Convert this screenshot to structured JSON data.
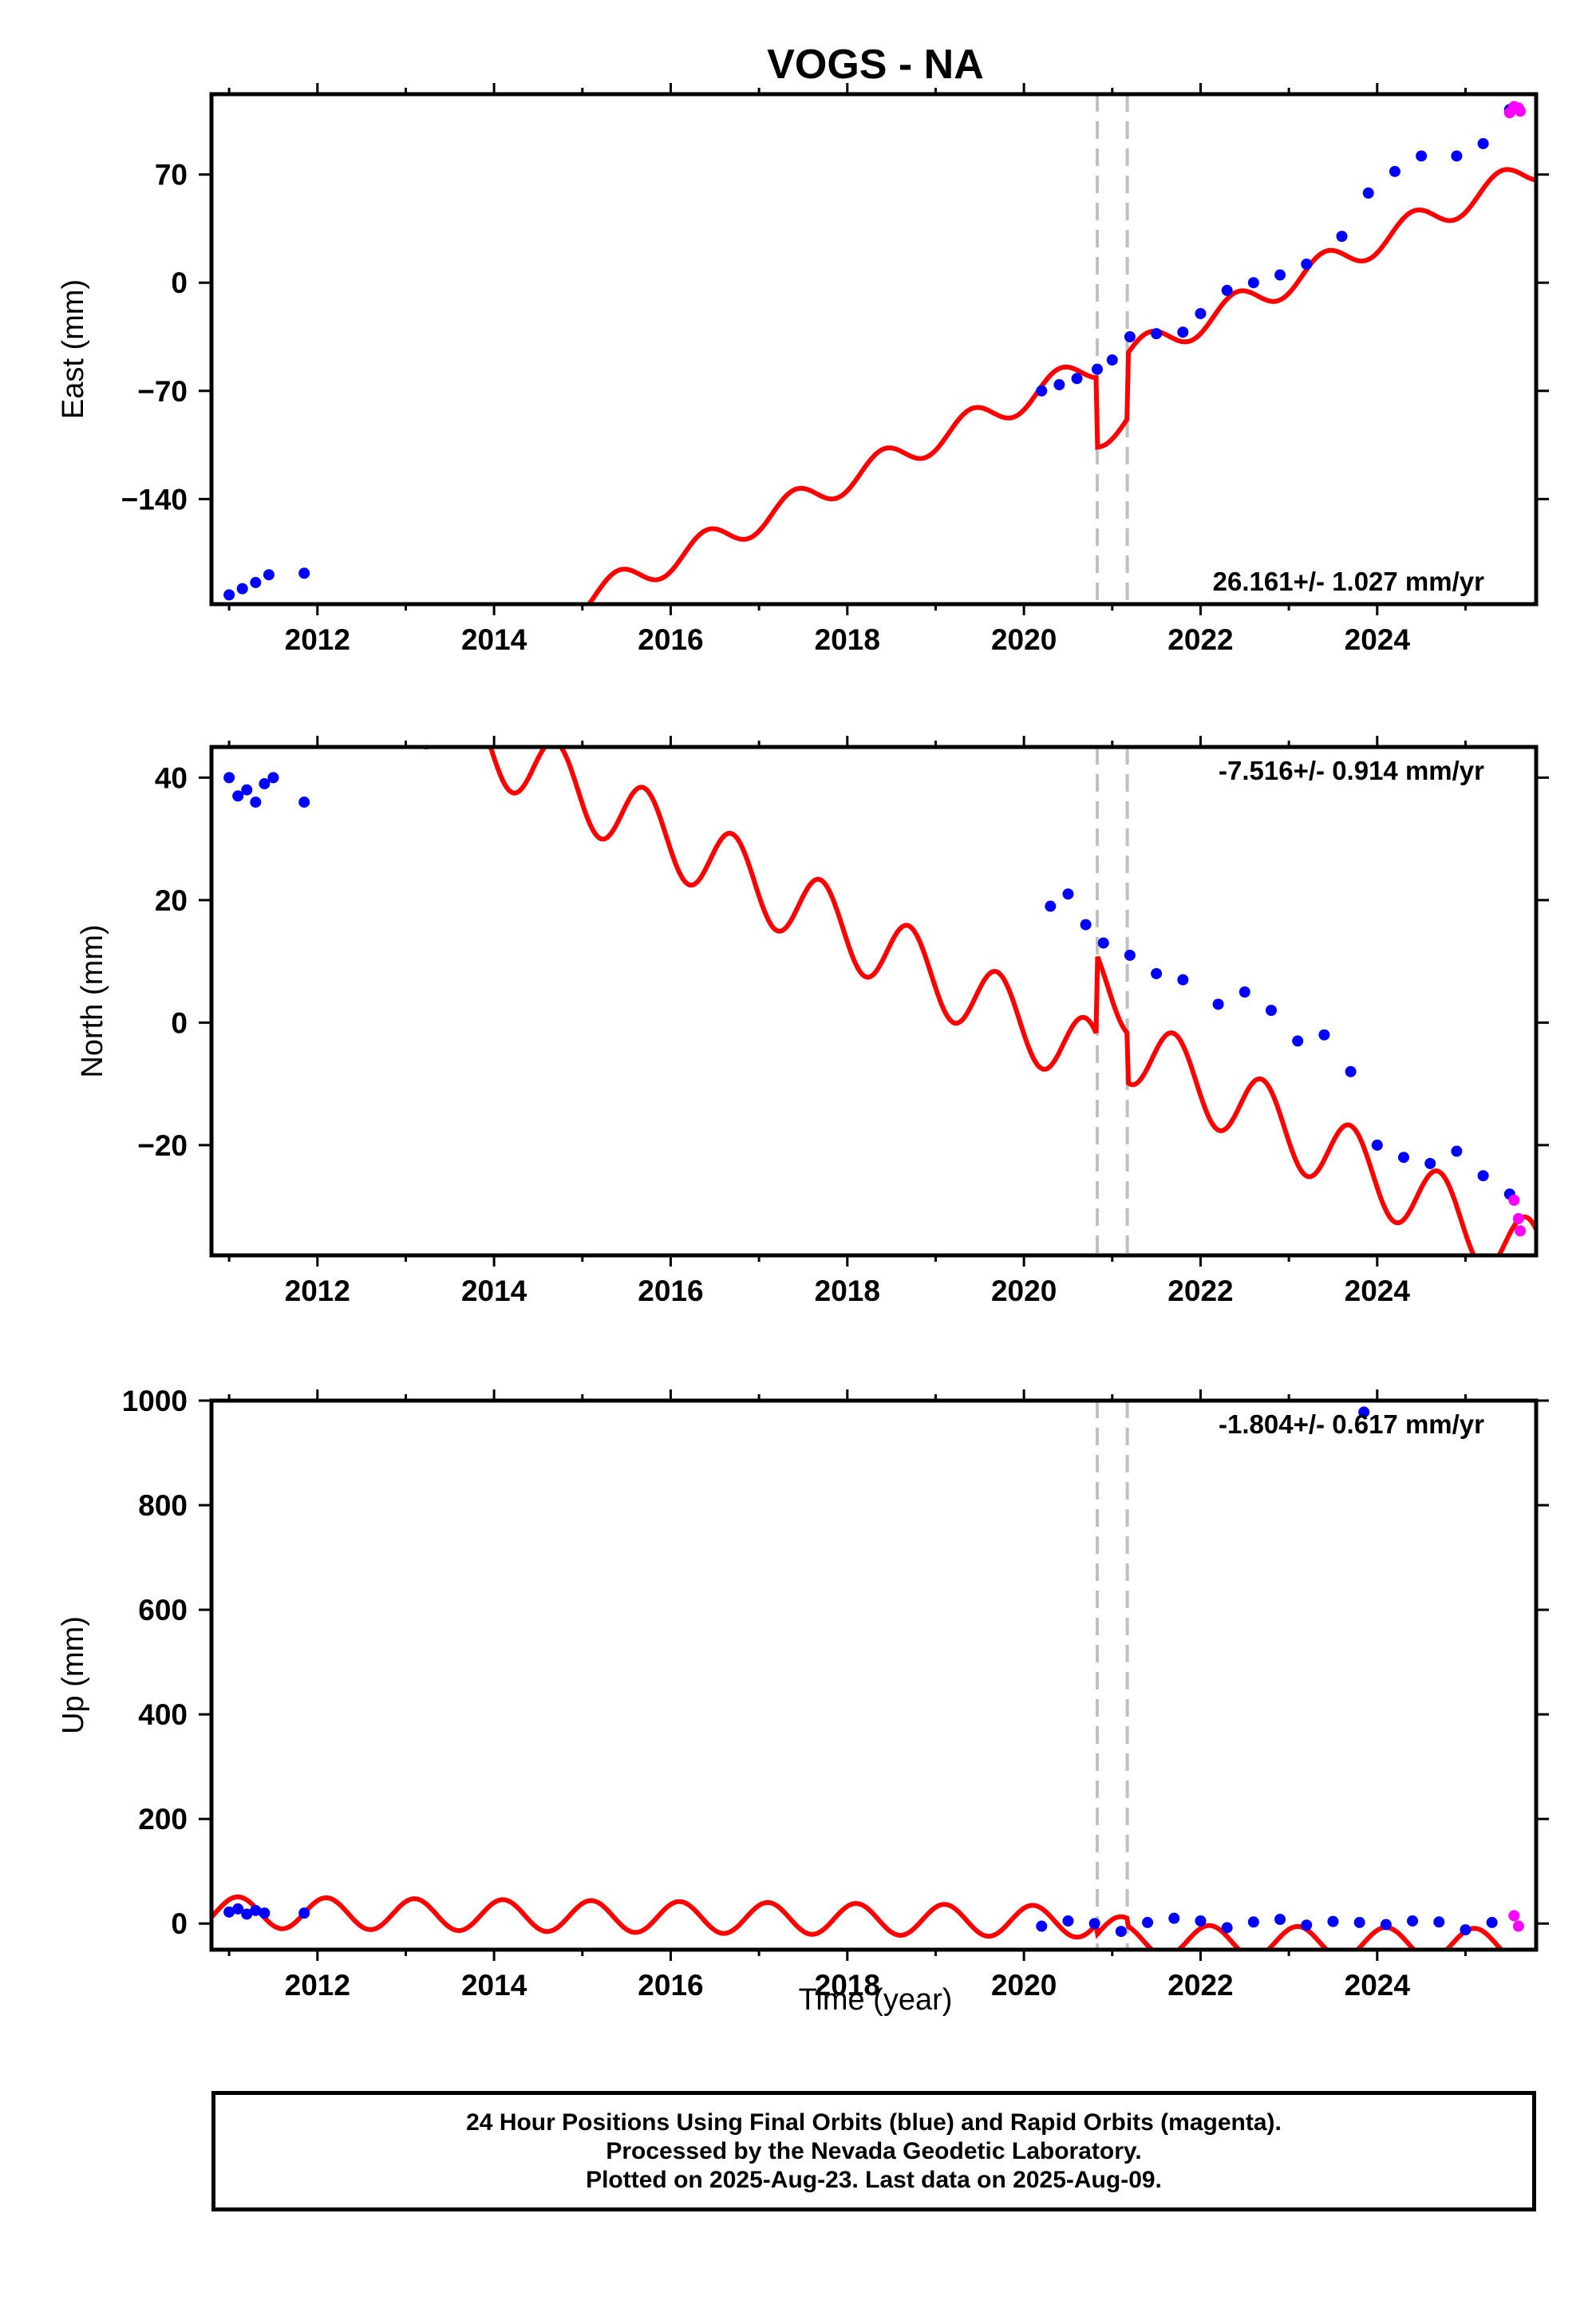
{
  "chart_data": {
    "title": "VOGS - NA",
    "type": "scatter",
    "xlabel": "Time (year)",
    "x_ticks": [
      "2012",
      "2014",
      "2016",
      "2018",
      "2020",
      "2022",
      "2024"
    ],
    "xlim": [
      2010.8,
      2025.8
    ],
    "offset_lines": [
      2020.83,
      2021.17
    ],
    "colors": {
      "final": "#0000ff",
      "rapid": "#ff00ff",
      "model": "#ff0000",
      "offset": "#c0c0c0"
    },
    "panels": [
      {
        "id": "east",
        "ylabel": "East (mm)",
        "ylim": [
          -208,
          122
        ],
        "yticks": [
          70,
          0,
          -70,
          -140
        ],
        "ytick_labels": [
          "70",
          "0",
          "−70",
          "−140"
        ],
        "rate_label": "26.161+/- 1.027 mm/yr",
        "rate_position": "bottom-right",
        "series": [
          {
            "name": "Final Orbits",
            "color": "#0000ff",
            "x": [
              2011.0,
              2011.15,
              2011.3,
              2011.45,
              2011.85,
              2020.2,
              2020.4,
              2020.6,
              2020.83,
              2021.0,
              2021.2,
              2021.5,
              2021.8,
              2022.0,
              2022.3,
              2022.6,
              2022.9,
              2023.2,
              2023.6,
              2023.9,
              2024.2,
              2024.5,
              2024.9,
              2025.2,
              2025.5
            ],
            "y": [
              -202,
              -198,
              -194,
              -189,
              -188,
              -70,
              -66,
              -62,
              -56,
              -50,
              -35,
              -33,
              -32,
              -20,
              -5,
              0,
              5,
              12,
              30,
              58,
              72,
              82,
              82,
              90,
              112
            ]
          },
          {
            "name": "Rapid Orbits",
            "color": "#ff00ff",
            "x": [
              2025.5,
              2025.55,
              2025.6,
              2025.62
            ],
            "y": [
              110,
              114,
              113,
              111
            ]
          }
        ],
        "model": {
          "slope": 26.161,
          "intercept": -75,
          "amplitude": 9,
          "phase": 0.15,
          "offset_after_first": -45,
          "offset_after_second": 42
        }
      },
      {
        "id": "north",
        "ylabel": "North (mm)",
        "ylim": [
          -38,
          45
        ],
        "yticks": [
          40,
          20,
          0,
          -20
        ],
        "ytick_labels": [
          "40",
          "20",
          "0",
          "−20"
        ],
        "rate_label": "-7.516+/- 0.914 mm/yr",
        "rate_position": "top-right",
        "series": [
          {
            "name": "Final Orbits",
            "color": "#0000ff",
            "x": [
              2011.0,
              2011.1,
              2011.2,
              2011.3,
              2011.4,
              2011.5,
              2011.85,
              2020.3,
              2020.5,
              2020.7,
              2020.9,
              2021.2,
              2021.5,
              2021.8,
              2022.2,
              2022.5,
              2022.8,
              2023.1,
              2023.4,
              2023.7,
              2024.0,
              2024.3,
              2024.6,
              2024.9,
              2025.2,
              2025.5
            ],
            "y": [
              40,
              37,
              38,
              36,
              39,
              40,
              36,
              19,
              21,
              16,
              13,
              11,
              8,
              7,
              3,
              5,
              2,
              -3,
              -2,
              -8,
              -20,
              -22,
              -23,
              -21,
              -25,
              -28
            ]
          },
          {
            "name": "Rapid Orbits",
            "color": "#ff00ff",
            "x": [
              2025.55,
              2025.6,
              2025.62
            ],
            "y": [
              -29,
              -32,
              -34
            ]
          }
        ],
        "model": {
          "slope": -7.516,
          "intercept": 0,
          "amplitude": 6,
          "phase": 0.45,
          "offset_after_first": 13,
          "offset_after_second": -8
        }
      },
      {
        "id": "up",
        "ylabel": "Up (mm)",
        "ylim": [
          -50,
          1000
        ],
        "yticks": [
          1000,
          800,
          600,
          400,
          200,
          0
        ],
        "ytick_labels": [
          "1000",
          "800",
          "600",
          "400",
          "200",
          "0"
        ],
        "rate_label": "-1.804+/- 0.617 mm/yr",
        "rate_position": "top-right",
        "series": [
          {
            "name": "Final Orbits",
            "color": "#0000ff",
            "x": [
              2011.0,
              2011.1,
              2011.2,
              2011.3,
              2011.4,
              2011.85,
              2020.2,
              2020.5,
              2020.8,
              2021.1,
              2021.4,
              2021.7,
              2022.0,
              2022.3,
              2022.6,
              2022.9,
              2023.2,
              2023.5,
              2023.8,
              2023.85,
              2024.1,
              2024.4,
              2024.7,
              2025.0,
              2025.3
            ],
            "y": [
              22,
              28,
              18,
              25,
              20,
              20,
              -5,
              5,
              0,
              -15,
              2,
              10,
              5,
              -8,
              3,
              8,
              -3,
              4,
              2,
              978,
              -2,
              5,
              3,
              -12,
              2
            ]
          },
          {
            "name": "Rapid Orbits",
            "color": "#ff00ff",
            "x": [
              2025.55,
              2025.6
            ],
            "y": [
              15,
              -5
            ]
          }
        ],
        "model": {
          "slope": -1.804,
          "intercept": 5,
          "amplitude": 30,
          "phase": 0.85,
          "offset_after_first": -20,
          "offset_after_second": -15
        }
      }
    ]
  },
  "caption": {
    "line1": "24 Hour Positions Using Final Orbits (blue) and Rapid Orbits (magenta).",
    "line2": "Processed by the Nevada Geodetic Laboratory.",
    "line3": "Plotted on 2025-Aug-23. Last data on 2025-Aug-09."
  }
}
